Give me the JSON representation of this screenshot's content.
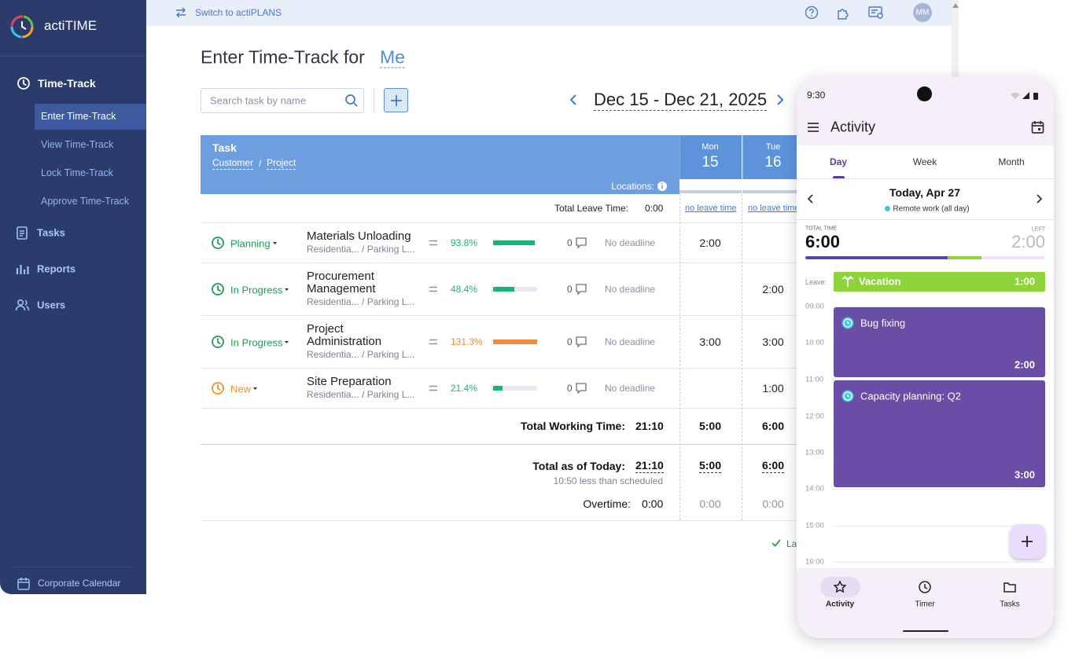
{
  "sidebar": {
    "brand": "actiTIME",
    "section": "Time-Track",
    "items": [
      "Enter Time-Track",
      "View Time-Track",
      "Lock Time-Track",
      "Approve Time-Track"
    ],
    "nav": [
      "Tasks",
      "Reports",
      "Users"
    ],
    "footer": "Corporate Calendar"
  },
  "topbar": {
    "switch": "Switch to actiPLANS",
    "avatar": "MM"
  },
  "header": {
    "title": "Enter Time-Track for",
    "user": "Me",
    "search_placeholder": "Search task by name",
    "date_range": "Dec 15 - Dec 21, 2025"
  },
  "table": {
    "task_header": "Task",
    "customer": "Customer",
    "separator": "/",
    "project": "Project",
    "locations": "Locations:",
    "days": [
      {
        "dow": "Mon",
        "day": "15"
      },
      {
        "dow": "Tue",
        "day": "16"
      }
    ],
    "leave_label": "Total Leave Time:",
    "leave_total": "0:00",
    "leave_days": [
      "no leave time",
      "no leave time"
    ],
    "rows": [
      {
        "status": "Planning",
        "status_color": "#1f9d55",
        "task": "Materials Unloading",
        "path": "Residentia... / Parking L...",
        "progress": 93.8,
        "progress_label": "93.8%",
        "progress_color": "#14b86f",
        "comments": "0",
        "deadline": "No deadline",
        "times": [
          "2:00",
          null
        ]
      },
      {
        "status": "In Progress",
        "status_color": "#1f9d55",
        "task": "Procurement Management",
        "path": "Residentia... / Parking L...",
        "progress": 48.4,
        "progress_label": "48.4%",
        "progress_color": "#14b86f",
        "comments": "0",
        "deadline": "No deadline",
        "times": [
          null,
          "2:00"
        ]
      },
      {
        "status": "In Progress",
        "status_color": "#1f9d55",
        "task": "Project Administration",
        "path": "Residentia... / Parking L...",
        "progress": 131.3,
        "progress_label": "131.3%",
        "progress_color": "#f08a3c",
        "comments": "0",
        "deadline": "No deadline",
        "times": [
          "3:00",
          "3:00"
        ]
      },
      {
        "status": "New",
        "status_color": "#e8961e",
        "task": "Site Preparation",
        "path": "Residentia... / Parking L...",
        "progress": 21.4,
        "progress_label": "21.4%",
        "progress_color": "#14b86f",
        "comments": "0",
        "deadline": "No deadline",
        "times": [
          null,
          "1:00"
        ]
      }
    ],
    "working_label": "Total Working Time:",
    "working": "21:10",
    "working_days": [
      "5:00",
      "6:00"
    ],
    "today_label": "Total as of Today:",
    "today": "21:10",
    "today_days": [
      "5:00",
      "6:00"
    ],
    "today_note": "10:50 less than scheduled",
    "overtime_label": "Overtime:",
    "overtime": "0:00",
    "overtime_days": [
      "0:00",
      "0:00"
    ],
    "saved_hint": "La"
  },
  "phone": {
    "clock": "9:30",
    "title": "Activity",
    "tabs": [
      "Day",
      "Week",
      "Month"
    ],
    "date": "Today, Apr 27",
    "status": "Remote work (all day)",
    "total_label": "TOTAL TIME",
    "total": "6:00",
    "left_label": "LEFT",
    "left": "2:00",
    "leave_label": "Leave:",
    "leave_name": "Vacation",
    "leave_time": "1:00",
    "hours": [
      "09:00",
      "10:00",
      "11:00",
      "12:00",
      "13:00",
      "14:00",
      "15:00",
      "16:00"
    ],
    "events": [
      {
        "name": "Bug fixing",
        "time": "2:00"
      },
      {
        "name": "Capacity planning: Q2",
        "time": "3:00"
      }
    ],
    "nav": [
      "Activity",
      "Timer",
      "Tasks"
    ]
  }
}
